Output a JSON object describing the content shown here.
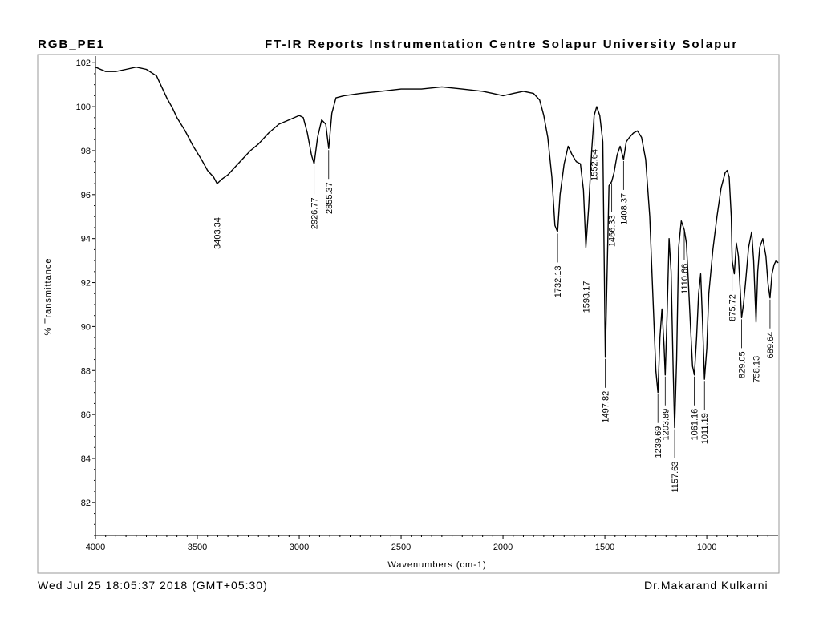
{
  "header": {
    "sample_name": "RGB_PE1",
    "report_title": "FT-IR Reports Instrumentation Centre Solapur University Solapur"
  },
  "footer": {
    "timestamp": "Wed Jul 25 18:05:37 2018 (GMT+05:30)",
    "operator": "Dr.Makarand Kulkarni"
  },
  "chart_data": {
    "type": "line",
    "title": "",
    "xlabel": "Wavenumbers (cm-1)",
    "ylabel": "% Transmittance",
    "xlim": [
      4000,
      650
    ],
    "ylim": [
      80.5,
      102.3
    ],
    "x_ticks": [
      4000,
      3500,
      3000,
      2500,
      2000,
      1500,
      1000
    ],
    "y_ticks": [
      82,
      84,
      86,
      88,
      90,
      92,
      94,
      96,
      98,
      100,
      102
    ],
    "grid": false,
    "series": [
      {
        "color": "#000000",
        "points": [
          [
            4000,
            101.8
          ],
          [
            3950,
            101.6
          ],
          [
            3900,
            101.6
          ],
          [
            3850,
            101.7
          ],
          [
            3800,
            101.8
          ],
          [
            3750,
            101.7
          ],
          [
            3700,
            101.4
          ],
          [
            3680,
            101.0
          ],
          [
            3650,
            100.4
          ],
          [
            3620,
            99.9
          ],
          [
            3600,
            99.5
          ],
          [
            3560,
            98.9
          ],
          [
            3520,
            98.2
          ],
          [
            3480,
            97.6
          ],
          [
            3450,
            97.1
          ],
          [
            3420,
            96.8
          ],
          [
            3403.34,
            96.5
          ],
          [
            3380,
            96.7
          ],
          [
            3350,
            96.9
          ],
          [
            3320,
            97.2
          ],
          [
            3280,
            97.6
          ],
          [
            3240,
            98.0
          ],
          [
            3200,
            98.3
          ],
          [
            3150,
            98.8
          ],
          [
            3100,
            99.2
          ],
          [
            3050,
            99.4
          ],
          [
            3000,
            99.6
          ],
          [
            2980,
            99.5
          ],
          [
            2960,
            98.8
          ],
          [
            2940,
            97.8
          ],
          [
            2926.77,
            97.4
          ],
          [
            2910,
            98.6
          ],
          [
            2890,
            99.4
          ],
          [
            2870,
            99.2
          ],
          [
            2855.37,
            98.1
          ],
          [
            2840,
            99.7
          ],
          [
            2820,
            100.4
          ],
          [
            2780,
            100.5
          ],
          [
            2700,
            100.6
          ],
          [
            2600,
            100.7
          ],
          [
            2500,
            100.8
          ],
          [
            2400,
            100.8
          ],
          [
            2300,
            100.9
          ],
          [
            2200,
            100.8
          ],
          [
            2100,
            100.7
          ],
          [
            2050,
            100.6
          ],
          [
            2000,
            100.5
          ],
          [
            1950,
            100.6
          ],
          [
            1900,
            100.7
          ],
          [
            1850,
            100.6
          ],
          [
            1820,
            100.3
          ],
          [
            1800,
            99.6
          ],
          [
            1780,
            98.6
          ],
          [
            1760,
            96.8
          ],
          [
            1745,
            94.6
          ],
          [
            1732.13,
            94.3
          ],
          [
            1720,
            96.0
          ],
          [
            1700,
            97.4
          ],
          [
            1680,
            98.2
          ],
          [
            1660,
            97.8
          ],
          [
            1640,
            97.5
          ],
          [
            1620,
            97.4
          ],
          [
            1605,
            96.2
          ],
          [
            1593.17,
            93.6
          ],
          [
            1580,
            95.4
          ],
          [
            1565,
            98.0
          ],
          [
            1552.64,
            99.6
          ],
          [
            1540,
            100.0
          ],
          [
            1525,
            99.6
          ],
          [
            1510,
            98.4
          ],
          [
            1497.82,
            88.6
          ],
          [
            1490,
            92.0
          ],
          [
            1480,
            96.4
          ],
          [
            1466.33,
            96.6
          ],
          [
            1455,
            97.0
          ],
          [
            1440,
            97.8
          ],
          [
            1425,
            98.2
          ],
          [
            1408.37,
            97.6
          ],
          [
            1395,
            98.4
          ],
          [
            1380,
            98.6
          ],
          [
            1360,
            98.8
          ],
          [
            1340,
            98.9
          ],
          [
            1320,
            98.6
          ],
          [
            1300,
            97.6
          ],
          [
            1280,
            95.0
          ],
          [
            1265,
            91.5
          ],
          [
            1250,
            88.0
          ],
          [
            1239.69,
            87.0
          ],
          [
            1230,
            89.5
          ],
          [
            1220,
            90.8
          ],
          [
            1210,
            89.2
          ],
          [
            1203.89,
            87.8
          ],
          [
            1195,
            90.5
          ],
          [
            1185,
            94.0
          ],
          [
            1175,
            92.5
          ],
          [
            1165,
            88.0
          ],
          [
            1157.63,
            85.4
          ],
          [
            1148,
            88.5
          ],
          [
            1138,
            93.6
          ],
          [
            1125,
            94.8
          ],
          [
            1110.66,
            94.4
          ],
          [
            1100,
            93.8
          ],
          [
            1090,
            92.0
          ],
          [
            1080,
            90.0
          ],
          [
            1070,
            88.2
          ],
          [
            1061.16,
            87.8
          ],
          [
            1050,
            89.5
          ],
          [
            1040,
            91.5
          ],
          [
            1030,
            92.4
          ],
          [
            1020,
            90.0
          ],
          [
            1011.19,
            87.6
          ],
          [
            1000,
            89.0
          ],
          [
            990,
            91.5
          ],
          [
            970,
            93.5
          ],
          [
            950,
            95.0
          ],
          [
            930,
            96.3
          ],
          [
            910,
            97.0
          ],
          [
            900,
            97.1
          ],
          [
            890,
            96.8
          ],
          [
            880,
            95.0
          ],
          [
            875.72,
            93.0
          ],
          [
            865,
            92.4
          ],
          [
            855,
            93.8
          ],
          [
            845,
            93.2
          ],
          [
            835,
            91.5
          ],
          [
            829.05,
            90.4
          ],
          [
            820,
            91.0
          ],
          [
            810,
            92.0
          ],
          [
            795,
            93.6
          ],
          [
            780,
            94.3
          ],
          [
            770,
            93.0
          ],
          [
            758.13,
            90.2
          ],
          [
            750,
            92.5
          ],
          [
            740,
            93.6
          ],
          [
            725,
            94.0
          ],
          [
            710,
            93.2
          ],
          [
            700,
            92.0
          ],
          [
            689.64,
            91.3
          ],
          [
            680,
            92.4
          ],
          [
            670,
            92.8
          ],
          [
            660,
            93.0
          ],
          [
            650,
            92.9
          ]
        ]
      }
    ],
    "peaks": [
      {
        "x": 3403.34,
        "label": "3403.34"
      },
      {
        "x": 2926.77,
        "label": "2926.77"
      },
      {
        "x": 2855.37,
        "label": "2855.37"
      },
      {
        "x": 1732.13,
        "label": "1732.13"
      },
      {
        "x": 1593.17,
        "label": "1593.17"
      },
      {
        "x": 1552.64,
        "label": "1552.64"
      },
      {
        "x": 1497.82,
        "label": "1497.82"
      },
      {
        "x": 1466.33,
        "label": "1466.33"
      },
      {
        "x": 1408.37,
        "label": "1408.37"
      },
      {
        "x": 1239.69,
        "label": "1239.69"
      },
      {
        "x": 1203.89,
        "label": "1203.89"
      },
      {
        "x": 1157.63,
        "label": "1157.63"
      },
      {
        "x": 1110.66,
        "label": "1110.66"
      },
      {
        "x": 1061.16,
        "label": "1061.16"
      },
      {
        "x": 1011.19,
        "label": "1011.19"
      },
      {
        "x": 875.72,
        "label": "875.72"
      },
      {
        "x": 829.05,
        "label": "829.05"
      },
      {
        "x": 758.13,
        "label": "758.13"
      },
      {
        "x": 689.64,
        "label": "689.64"
      }
    ]
  }
}
